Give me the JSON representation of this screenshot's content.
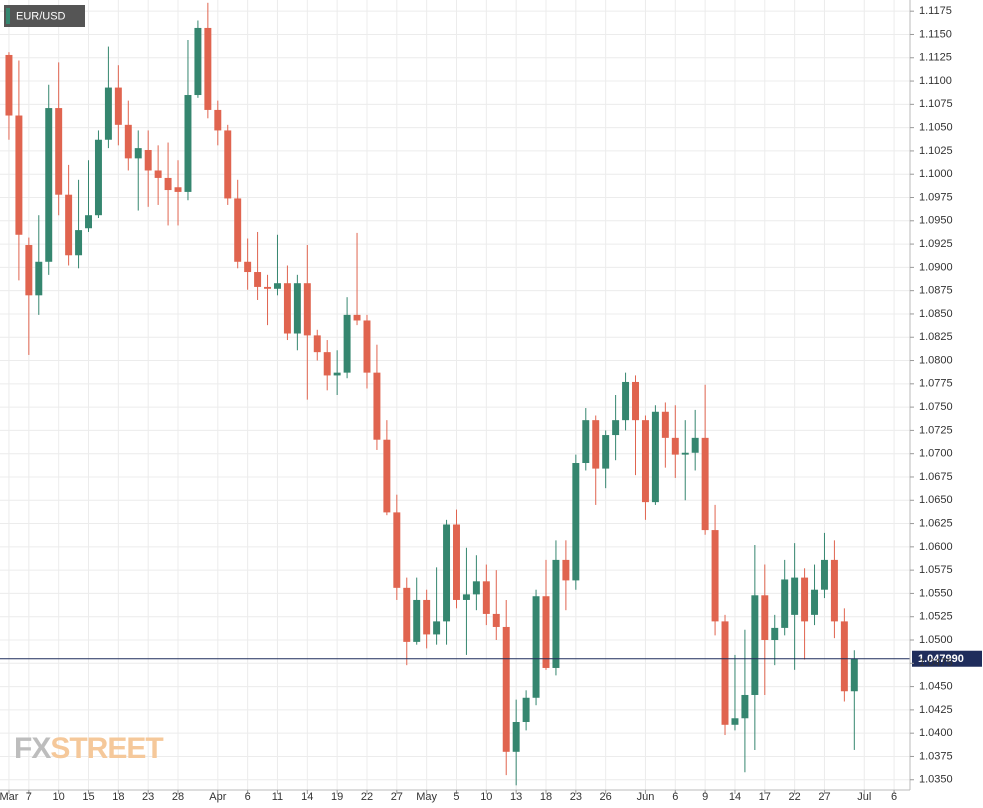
{
  "chart_data": {
    "type": "candlestick",
    "title": "EUR/USD",
    "watermark": [
      "FX",
      "STREET"
    ],
    "up_color": "#35866f",
    "down_color": "#e0644f",
    "grid": true,
    "last_price": {
      "value": 1.04799,
      "label": "1.047990"
    },
    "open": [
      1.1128,
      1.1063,
      1.0924,
      1.087,
      1.0906,
      1.1071,
      1.0978,
      1.0913,
      1.0942,
      1.0956,
      1.1037,
      1.1093,
      1.1053,
      1.1017,
      1.1026,
      1.1004,
      1.0996,
      1.0986,
      1.0981,
      1.1085,
      1.1157,
      1.1069,
      1.1047,
      1.0974,
      1.0906,
      1.0895,
      1.0879,
      1.0877,
      1.0883,
      1.0829,
      1.0883,
      1.0827,
      1.0809,
      1.0784,
      1.0787,
      1.0849,
      1.0843,
      1.0787,
      1.0715,
      1.0637,
      1.0556,
      1.0498,
      1.0543,
      1.0506,
      1.052,
      1.0624,
      1.0543,
      1.0549,
      1.0563,
      1.0528,
      1.0514,
      1.038,
      1.0412,
      1.0438,
      1.0547,
      1.047,
      1.0586,
      1.0564,
      1.069,
      1.0736,
      1.0684,
      1.072,
      1.0736,
      1.0777,
      1.0736,
      1.0648,
      1.0745,
      1.0717,
      1.0699,
      1.0701,
      1.0717,
      1.0618,
      1.052,
      1.0409,
      1.0416,
      1.0441,
      1.0548,
      1.05,
      1.0513,
      1.0527,
      1.0567,
      1.0527,
      1.0554,
      1.0586,
      1.052,
      1.0445
    ],
    "high": [
      1.1131,
      1.1122,
      1.0932,
      1.0956,
      1.1096,
      1.112,
      1.101,
      1.0994,
      1.1015,
      1.1047,
      1.1137,
      1.1117,
      1.1079,
      1.1047,
      1.1047,
      1.1031,
      1.1034,
      1.1015,
      1.1144,
      1.1165,
      1.1184,
      1.1079,
      1.1053,
      1.0994,
      1.0931,
      1.0938,
      1.0892,
      1.0935,
      1.0902,
      1.0892,
      1.0924,
      1.0833,
      1.0822,
      1.0811,
      1.0868,
      1.0937,
      1.0849,
      1.0817,
      1.0736,
      1.0656,
      1.0567,
      1.0567,
      1.0554,
      1.0578,
      1.0629,
      1.064,
      1.0599,
      1.0591,
      1.0581,
      1.0575,
      1.0543,
      1.0436,
      1.0446,
      1.0554,
      1.0586,
      1.0607,
      1.0607,
      1.0699,
      1.0749,
      1.0741,
      1.0725,
      1.0763,
      1.0787,
      1.0784,
      1.0741,
      1.0752,
      1.0755,
      1.0752,
      1.0736,
      1.0747,
      1.0774,
      1.0645,
      1.0527,
      1.0484,
      1.0511,
      1.0602,
      1.0581,
      1.0527,
      1.0586,
      1.0604,
      1.0577,
      1.0581,
      1.0615,
      1.0607,
      1.0534,
      1.0489
    ],
    "low": [
      1.1037,
      1.0886,
      1.0806,
      1.0849,
      1.0892,
      1.0956,
      1.0902,
      1.0899,
      1.0938,
      1.0953,
      1.1028,
      1.1031,
      1.1004,
      1.0961,
      1.0965,
      1.0967,
      1.0945,
      1.0945,
      1.0972,
      1.1082,
      1.106,
      1.1031,
      1.0967,
      1.0899,
      1.0876,
      1.0865,
      1.0838,
      1.087,
      1.0822,
      1.0811,
      1.0758,
      1.08,
      1.0768,
      1.0763,
      1.0781,
      1.0838,
      1.077,
      1.0704,
      1.0634,
      1.0543,
      1.0473,
      1.0495,
      1.0491,
      1.0495,
      1.0495,
      1.0534,
      1.0484,
      1.0532,
      1.0516,
      1.05,
      1.0355,
      1.0344,
      1.0403,
      1.043,
      1.0468,
      1.0462,
      1.0532,
      1.0554,
      1.0682,
      1.0645,
      1.0663,
      1.0693,
      1.0725,
      1.0677,
      1.0629,
      1.0645,
      1.0685,
      1.0674,
      1.065,
      1.0682,
      1.0613,
      1.0505,
      1.0398,
      1.0403,
      1.0358,
      1.0382,
      1.0441,
      1.0473,
      1.0505,
      1.0468,
      1.0479,
      1.0516,
      1.0545,
      1.0502,
      1.0434,
      1.0382
    ],
    "close": [
      1.1063,
      1.0935,
      1.087,
      1.0906,
      1.1071,
      1.0978,
      1.0913,
      1.094,
      1.0956,
      1.1037,
      1.1093,
      1.1053,
      1.1017,
      1.1028,
      1.1004,
      1.0996,
      1.0983,
      1.0981,
      1.1085,
      1.1157,
      1.1069,
      1.1047,
      1.0974,
      1.0906,
      1.0895,
      1.0879,
      1.0877,
      1.0883,
      1.0829,
      1.0883,
      1.0827,
      1.0809,
      1.0784,
      1.0787,
      1.0849,
      1.0843,
      1.0787,
      1.0715,
      1.0637,
      1.0556,
      1.0498,
      1.0543,
      1.0506,
      1.052,
      1.0624,
      1.0543,
      1.0549,
      1.0563,
      1.0528,
      1.0514,
      1.038,
      1.0412,
      1.0438,
      1.0547,
      1.047,
      1.0586,
      1.0564,
      1.069,
      1.0736,
      1.0684,
      1.072,
      1.0736,
      1.0777,
      1.0736,
      1.0648,
      1.0745,
      1.0717,
      1.0699,
      1.0701,
      1.0717,
      1.0618,
      1.052,
      1.0409,
      1.0416,
      1.0441,
      1.0548,
      1.05,
      1.0513,
      1.0565,
      1.0567,
      1.052,
      1.0554,
      1.0586,
      1.052,
      1.0445,
      1.048
    ],
    "xlim": [
      -0.9,
      90.6
    ],
    "xticks": [
      {
        "value": 0,
        "label": "Mar"
      },
      {
        "value": 2,
        "label": "7"
      },
      {
        "value": 5,
        "label": "10"
      },
      {
        "value": 8,
        "label": "15"
      },
      {
        "value": 11,
        "label": "18"
      },
      {
        "value": 14,
        "label": "23"
      },
      {
        "value": 17,
        "label": "28"
      },
      {
        "value": 21,
        "label": "Apr"
      },
      {
        "value": 24,
        "label": "6"
      },
      {
        "value": 27,
        "label": "11"
      },
      {
        "value": 30,
        "label": "14"
      },
      {
        "value": 33,
        "label": "19"
      },
      {
        "value": 36,
        "label": "22"
      },
      {
        "value": 39,
        "label": "27"
      },
      {
        "value": 42,
        "label": "May"
      },
      {
        "value": 45,
        "label": "5"
      },
      {
        "value": 48,
        "label": "10"
      },
      {
        "value": 51,
        "label": "13"
      },
      {
        "value": 54,
        "label": "18"
      },
      {
        "value": 57,
        "label": "23"
      },
      {
        "value": 60,
        "label": "26"
      },
      {
        "value": 64,
        "label": "Jun"
      },
      {
        "value": 67,
        "label": "6"
      },
      {
        "value": 70,
        "label": "9"
      },
      {
        "value": 73,
        "label": "14"
      },
      {
        "value": 76,
        "label": "17"
      },
      {
        "value": 79,
        "label": "22"
      },
      {
        "value": 82,
        "label": "27"
      },
      {
        "value": 86,
        "label": "Jul"
      },
      {
        "value": 89,
        "label": "6"
      }
    ],
    "ylim": [
      1.0339,
      1.1187
    ],
    "yticks": [
      {
        "value": 1.035,
        "label": "1.0350"
      },
      {
        "value": 1.0375,
        "label": "1.0375"
      },
      {
        "value": 1.04,
        "label": "1.0400"
      },
      {
        "value": 1.0425,
        "label": "1.0425"
      },
      {
        "value": 1.045,
        "label": "1.0450"
      },
      {
        "value": 1.0475,
        "label": "1.0475"
      },
      {
        "value": 1.05,
        "label": "1.0500"
      },
      {
        "value": 1.0525,
        "label": "1.0525"
      },
      {
        "value": 1.055,
        "label": "1.0550"
      },
      {
        "value": 1.0575,
        "label": "1.0575"
      },
      {
        "value": 1.06,
        "label": "1.0600"
      },
      {
        "value": 1.0625,
        "label": "1.0625"
      },
      {
        "value": 1.065,
        "label": "1.0650"
      },
      {
        "value": 1.0675,
        "label": "1.0675"
      },
      {
        "value": 1.07,
        "label": "1.0700"
      },
      {
        "value": 1.0725,
        "label": "1.0725"
      },
      {
        "value": 1.075,
        "label": "1.0750"
      },
      {
        "value": 1.0775,
        "label": "1.0775"
      },
      {
        "value": 1.08,
        "label": "1.0800"
      },
      {
        "value": 1.0825,
        "label": "1.0825"
      },
      {
        "value": 1.085,
        "label": "1.0850"
      },
      {
        "value": 1.0875,
        "label": "1.0875"
      },
      {
        "value": 1.09,
        "label": "1.0900"
      },
      {
        "value": 1.0925,
        "label": "1.0925"
      },
      {
        "value": 1.095,
        "label": "1.0950"
      },
      {
        "value": 1.0975,
        "label": "1.0975"
      },
      {
        "value": 1.1,
        "label": "1.1000"
      },
      {
        "value": 1.1025,
        "label": "1.1025"
      },
      {
        "value": 1.105,
        "label": "1.1050"
      },
      {
        "value": 1.1075,
        "label": "1.1075"
      },
      {
        "value": 1.11,
        "label": "1.1100"
      },
      {
        "value": 1.1125,
        "label": "1.1125"
      },
      {
        "value": 1.115,
        "label": "1.1150"
      },
      {
        "value": 1.1175,
        "label": "1.1175"
      }
    ]
  }
}
